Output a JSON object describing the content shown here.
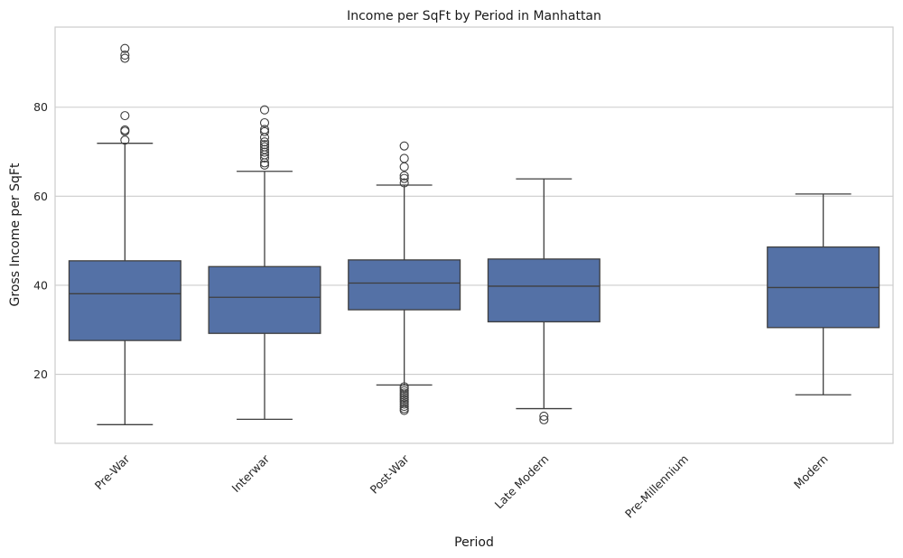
{
  "chart_data": {
    "type": "box",
    "title": "Income per SqFt by Period in Manhattan",
    "xlabel": "Period",
    "ylabel": "Gross Income per SqFt",
    "ylim": [
      4.5,
      98
    ],
    "yticks": [
      20,
      40,
      60,
      80
    ],
    "grid": "horizontal",
    "categories": [
      "Pre-War",
      "Interwar",
      "Post-War",
      "Late Modern",
      "Pre-Millennium",
      "Modern"
    ],
    "box_color": "#5471a6",
    "line_color": "#3f3f3f",
    "boxes": [
      {
        "category": "Pre-War",
        "whisker_low": 8.7,
        "q1": 27.6,
        "median": 38.1,
        "q3": 45.5,
        "whisker_high": 71.9,
        "outliers": [
          72.6,
          74.6,
          74.9,
          78.1,
          91.0,
          91.7,
          93.2
        ]
      },
      {
        "category": "Interwar",
        "whisker_low": 9.9,
        "q1": 29.2,
        "median": 37.3,
        "q3": 44.2,
        "whisker_high": 65.6,
        "outliers": [
          67.0,
          67.5,
          68.6,
          69.3,
          69.9,
          70.5,
          71.1,
          71.6,
          72.2,
          73.2,
          74.5,
          75.0,
          76.5,
          79.4
        ]
      },
      {
        "category": "Post-War",
        "whisker_low": 17.6,
        "q1": 34.5,
        "median": 40.5,
        "q3": 45.7,
        "whisker_high": 62.5,
        "outliers": [
          11.9,
          12.3,
          12.8,
          13.3,
          13.8,
          14.3,
          14.8,
          15.3,
          15.8,
          16.3,
          16.8,
          17.2,
          63.0,
          64.0,
          64.6,
          66.6,
          68.5,
          71.3
        ]
      },
      {
        "category": "Late Modern",
        "whisker_low": 12.3,
        "q1": 31.8,
        "median": 39.8,
        "q3": 45.9,
        "whisker_high": 63.9,
        "outliers": [
          9.8,
          10.6
        ]
      },
      {
        "category": "Pre-Millennium"
      },
      {
        "category": "Modern",
        "whisker_low": 15.4,
        "q1": 30.5,
        "median": 39.5,
        "q3": 48.6,
        "whisker_high": 60.5,
        "outliers": []
      }
    ]
  }
}
